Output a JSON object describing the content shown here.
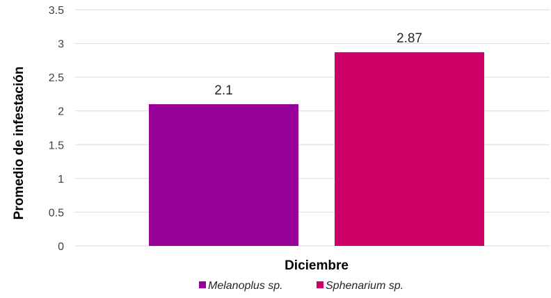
{
  "chart_data": {
    "type": "bar",
    "categories": [
      "Diciembre"
    ],
    "series": [
      {
        "name": "Melanoplus sp.",
        "values": [
          2.1
        ],
        "color": "#990099",
        "label": "2.1"
      },
      {
        "name": "Sphenarium sp.",
        "values": [
          2.87
        ],
        "color": "#CC0066",
        "label": "2.87"
      }
    ],
    "title": "",
    "xlabel": "Diciembre",
    "ylabel": "Promedio de infestación",
    "ylim": [
      0,
      3.5
    ],
    "yticks": [
      "0",
      "0.5",
      "1",
      "1.5",
      "2",
      "2.5",
      "3",
      "3.5"
    ],
    "grid": true,
    "legend_position": "bottom"
  }
}
